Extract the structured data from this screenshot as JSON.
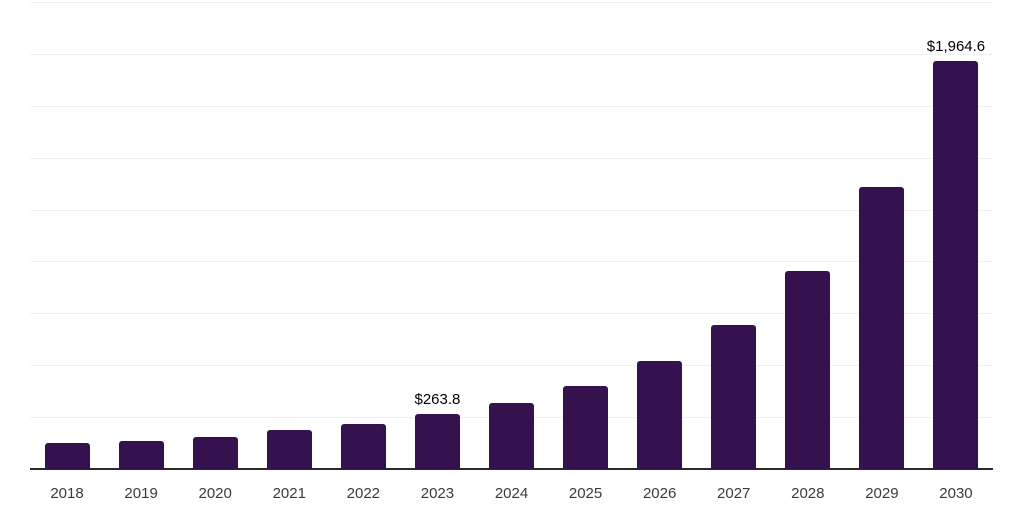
{
  "chart_data": {
    "type": "bar",
    "title": "",
    "xlabel": "",
    "ylabel": "",
    "legend": "none",
    "grid": "horizontal",
    "categories": [
      "2018",
      "2019",
      "2020",
      "2021",
      "2022",
      "2023",
      "2024",
      "2025",
      "2026",
      "2027",
      "2028",
      "2029",
      "2030"
    ],
    "values": [
      125,
      134,
      153,
      187,
      216,
      263.8,
      317,
      398,
      518,
      696,
      955,
      1358,
      1964.6
    ],
    "data_labels": [
      "",
      "",
      "",
      "",
      "",
      "$263.8",
      "",
      "",
      "",
      "",
      "",
      "",
      "$1,964.6"
    ],
    "ylim": [
      0,
      2250
    ],
    "gridline_step": 250
  },
  "style": {
    "background_color": "#ffffff",
    "bar_color": "#35114E",
    "gridline_color": "#f0f0f0",
    "axis_line_color": "#2b2b2b",
    "tick_label_color": "#3b3b3b",
    "data_label_color": "#000000"
  }
}
